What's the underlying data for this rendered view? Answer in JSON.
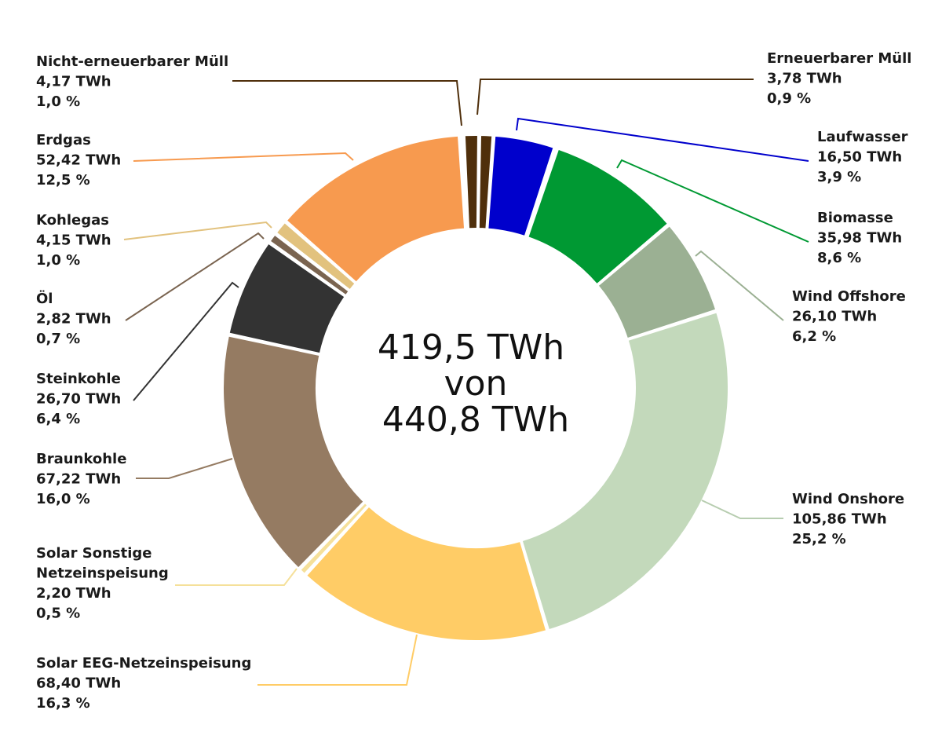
{
  "chart_data": {
    "type": "pie",
    "donut": true,
    "center_text": [
      "419,5 TWh",
      "von",
      "440,8 TWh"
    ],
    "unit": "TWh",
    "slices": [
      {
        "name": "Erneuerbarer Müll",
        "value": 3.78,
        "value_label": "3,78 TWh",
        "percent_label": "0,9 %",
        "color": "#4f2f0b"
      },
      {
        "name": "Laufwasser",
        "value": 16.5,
        "value_label": "16,50 TWh",
        "percent_label": "3,9 %",
        "color": "#0000cc"
      },
      {
        "name": "",
        "value": 0.6,
        "value_label": "",
        "percent_label": "",
        "color": "#b8cce6"
      },
      {
        "name": "Biomasse",
        "value": 35.98,
        "value_label": "35,98 TWh",
        "percent_label": "8,6 %",
        "color": "#009933"
      },
      {
        "name": "Wind Offshore",
        "value": 26.1,
        "value_label": "26,10 TWh",
        "percent_label": "6,2 %",
        "color": "#9bb093"
      },
      {
        "name": "Wind Onshore",
        "value": 105.86,
        "value_label": "105,86 TWh",
        "percent_label": "25,2 %",
        "color": "#c3d9bb"
      },
      {
        "name": "Solar EEG-Netzeinspeisung",
        "value": 68.4,
        "value_label": "68,40 TWh",
        "percent_label": "16,3 %",
        "color": "#ffcc66"
      },
      {
        "name": "Solar Sonstige Netzeinspeisung",
        "value": 2.2,
        "value_label": "2,20 TWh",
        "percent_label": "0,5 %",
        "color": "#f5e09a"
      },
      {
        "name": "Braunkohle",
        "value": 67.22,
        "value_label": "67,22 TWh",
        "percent_label": "16,0 %",
        "color": "#957b62"
      },
      {
        "name": "Steinkohle",
        "value": 26.7,
        "value_label": "26,70 TWh",
        "percent_label": "6,4 %",
        "color": "#333333"
      },
      {
        "name": "Öl",
        "value": 2.82,
        "value_label": "2,82 TWh",
        "percent_label": "0,7 %",
        "color": "#7a6450"
      },
      {
        "name": "Kohlegas",
        "value": 4.15,
        "value_label": "4,15 TWh",
        "percent_label": "1,0 %",
        "color": "#e2c27e"
      },
      {
        "name": "Erdgas",
        "value": 52.42,
        "value_label": "52,42 TWh",
        "percent_label": "12,5 %",
        "color": "#f79a4f"
      },
      {
        "name": "",
        "value": 1.0,
        "value_label": "",
        "percent_label": "",
        "color": "#9c8ab0"
      },
      {
        "name": "Nicht-erneuerbarer Müll",
        "value": 4.17,
        "value_label": "4,17 TWh",
        "percent_label": "1,0 %",
        "color": "#4f2f0b"
      }
    ]
  }
}
